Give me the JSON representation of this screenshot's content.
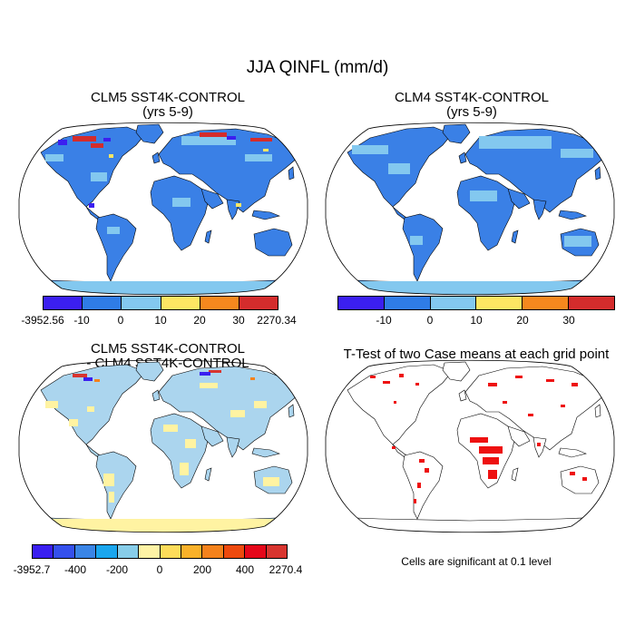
{
  "figure": {
    "title": "JJA QINFL (mm/d)"
  },
  "panels": [
    {
      "title_line1": "CLM5 SST4K-CONTROL",
      "title_line2": "(yrs 5-9)"
    },
    {
      "title_line1": "CLM4 SST4K-CONTROL",
      "title_line2": "(yrs 5-9)"
    },
    {
      "title_line1": "CLM5 SST4K-CONTROL",
      "title_line2": "- CLM4 SST4K-CONTROL"
    },
    {
      "title_line1": "T-Test of two Case means at each grid point",
      "title_line2": ""
    }
  ],
  "colorbars": {
    "top_left": {
      "colors": [
        "#3b1ff0",
        "#2f7ce6",
        "#83c8ef",
        "#fde663",
        "#f6881e",
        "#d42c2c"
      ],
      "labels": [
        "-3952.56",
        "-10",
        "0",
        "10",
        "20",
        "30",
        "2270.34"
      ]
    },
    "top_right": {
      "colors": [
        "#3b1ff0",
        "#2f7ce6",
        "#83c8ef",
        "#fde663",
        "#f6881e",
        "#d42c2c"
      ],
      "labels": [
        "",
        "-10",
        "0",
        "10",
        "20",
        "30",
        ""
      ]
    },
    "bottom_left": {
      "colors": [
        "#3a1ff0",
        "#3550ec",
        "#3a85e6",
        "#1aa6ee",
        "#87cde9",
        "#fef3a5",
        "#fddc5a",
        "#f9b12a",
        "#f4821c",
        "#ee4a0e",
        "#e5071a",
        "#d8352f"
      ],
      "labels": [
        "-3952.7",
        "-400",
        "-200",
        "0",
        "200",
        "400",
        "2270.4"
      ]
    }
  },
  "significance_note": "Cells are significant at 0.1 level",
  "map_colors": {
    "ocean": "#ffffff",
    "land_lightblue": "#83c8ef",
    "land_midblue": "#3a80e6",
    "land_pale": "#abd5ee",
    "pale_yellow": "#fff3a2",
    "significant_red": "#ee1111"
  }
}
